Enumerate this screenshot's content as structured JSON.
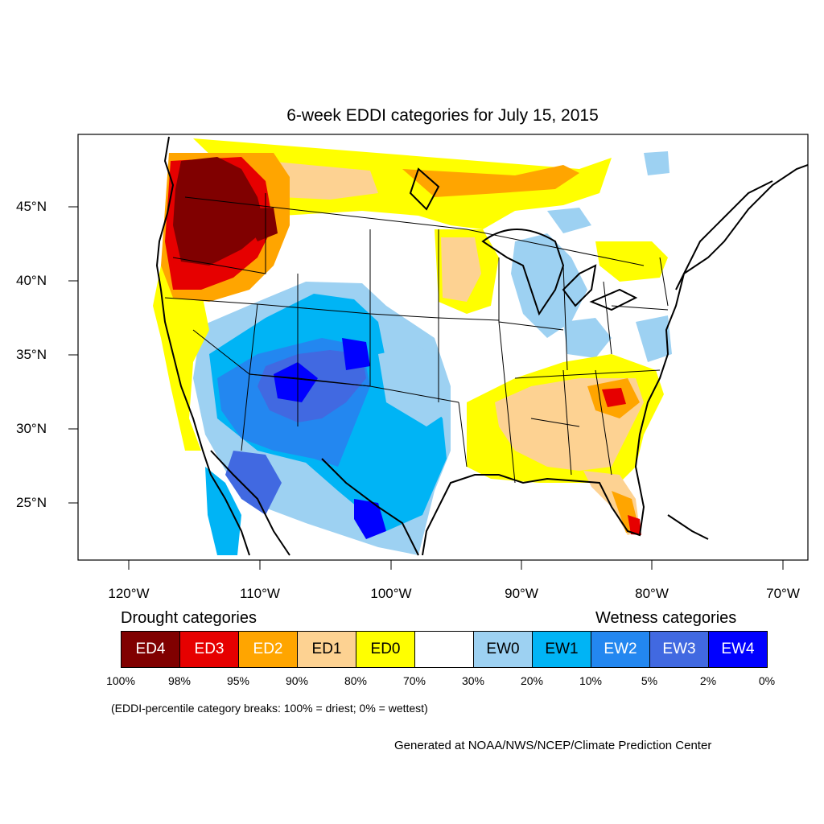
{
  "title": "6-week EDDI categories for July 15, 2015",
  "lat_labels": [
    "45°N",
    "40°N",
    "35°N",
    "30°N",
    "25°N"
  ],
  "lon_labels": [
    "120°W",
    "110°W",
    "100°W",
    "90°W",
    "80°W",
    "70°W"
  ],
  "legend": {
    "drought_heading": "Drought categories",
    "wetness_heading": "Wetness categories",
    "categories": [
      {
        "label": "ED4",
        "color": "#800000"
      },
      {
        "label": "ED3",
        "color": "#e60000"
      },
      {
        "label": "ED2",
        "color": "#ffa500"
      },
      {
        "label": "ED1",
        "color": "#fdd292"
      },
      {
        "label": "ED0",
        "color": "#ffff00"
      },
      {
        "label": "",
        "color": "#ffffff"
      },
      {
        "label": "EW0",
        "color": "#9dd1f2"
      },
      {
        "label": "EW1",
        "color": "#00b4f5"
      },
      {
        "label": "EW2",
        "color": "#2387f0"
      },
      {
        "label": "EW3",
        "color": "#4169e1"
      },
      {
        "label": "EW4",
        "color": "#0000ff"
      }
    ],
    "breaks": [
      "100%",
      "98%",
      "95%",
      "90%",
      "80%",
      "70%",
      "30%",
      "20%",
      "10%",
      "5%",
      "2%",
      "0%"
    ]
  },
  "note": "(EDDI-percentile category breaks: 100% = driest; 0% = wettest)",
  "credit": "Generated at NOAA/NWS/NCEP/Climate Prediction Center"
}
